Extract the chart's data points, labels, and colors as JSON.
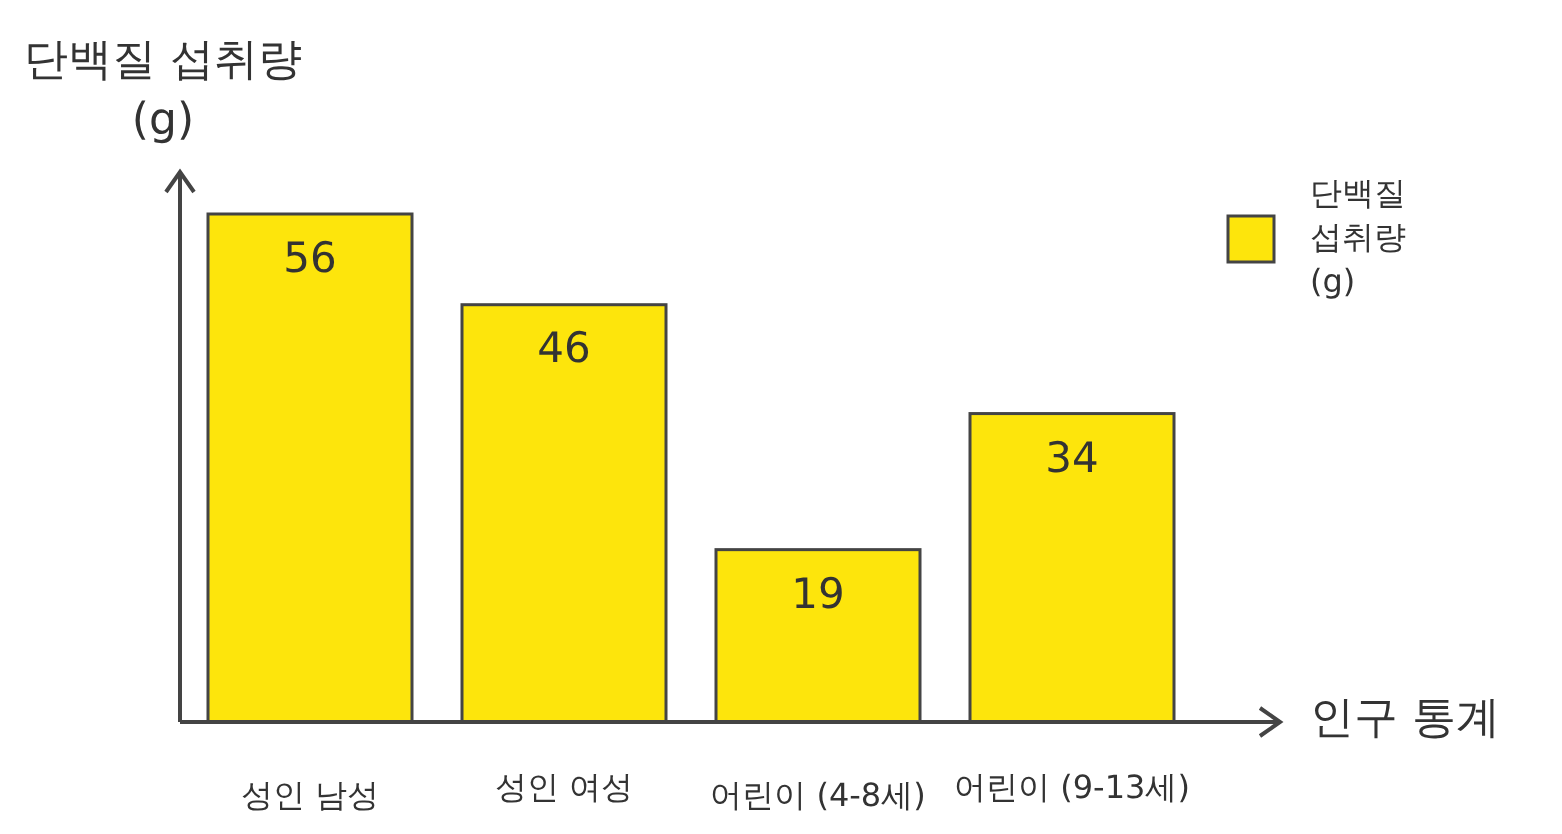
{
  "chart_data": {
    "type": "bar",
    "xlabel": "인구 통계",
    "ylabel": "단백질 섭취량 (g)",
    "categories": [
      "성인 남성",
      "성인 여성",
      "어린이 (4-8세)",
      "어린이 (9-13세)"
    ],
    "series": [
      {
        "name": "단백질 섭취량 (g)",
        "color": "#fde50c",
        "values": [
          56,
          46,
          19,
          34
        ]
      }
    ],
    "data_labels": true,
    "legend": "top right"
  }
}
